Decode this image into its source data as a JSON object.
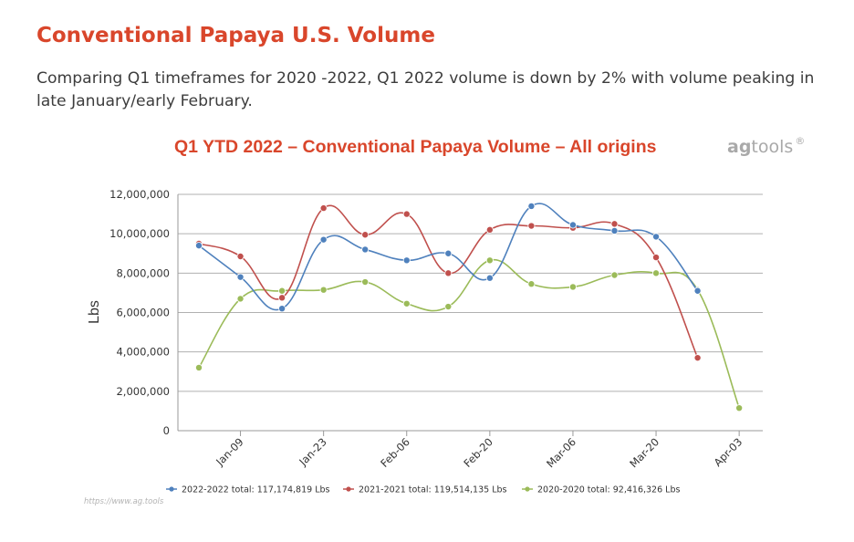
{
  "page": {
    "title": "Conventional Papaya U.S. Volume",
    "subtitle": "Comparing Q1 timeframes for 2020 -2022, Q1 2022 volume is down by 2% with volume peaking in late January/early February."
  },
  "brand": {
    "prefix": "ag",
    "name": "tools",
    "mark": "®"
  },
  "source_url": "https://www.ag.tools",
  "colors": {
    "title": "#d9462b",
    "s2022": "#4f81bd",
    "s2021": "#c0504d",
    "s2020": "#9bbb59",
    "grid": "#b0b0b0"
  },
  "chart_data": {
    "type": "line",
    "title": "Q1 YTD 2022 – Conventional Papaya Volume – All origins",
    "ylabel": "Lbs",
    "xlabel": "",
    "ylim": [
      0,
      12000000
    ],
    "yticks": [
      "0",
      "2,000,000",
      "4,000,000",
      "6,000,000",
      "8,000,000",
      "10,000,000",
      "12,000,000"
    ],
    "xtick_labels": [
      "Jan-09",
      "Jan-23",
      "Feb-06",
      "Feb-20",
      "Mar-06",
      "Mar-20",
      "Apr-03"
    ],
    "x": [
      "Jan-02",
      "Jan-09",
      "Jan-16",
      "Jan-23",
      "Jan-30",
      "Feb-06",
      "Feb-13",
      "Feb-20",
      "Feb-27",
      "Mar-06",
      "Mar-13",
      "Mar-20",
      "Mar-27",
      "Apr-03"
    ],
    "grid": true,
    "legend_position": "bottom",
    "series": [
      {
        "name": "2022-2022",
        "legend": "2022-2022 total: 117,174,819 Lbs",
        "values": [
          9400000,
          7800000,
          6200000,
          9700000,
          9200000,
          8650000,
          9000000,
          7750000,
          11400000,
          10450000,
          10150000,
          9850000,
          7100000,
          null
        ]
      },
      {
        "name": "2021-2021",
        "legend": "2021-2021 total: 119,514,135 Lbs",
        "values": [
          9500000,
          8850000,
          6750000,
          11300000,
          9950000,
          11000000,
          8000000,
          10200000,
          10400000,
          10300000,
          10500000,
          8800000,
          3700000,
          null
        ]
      },
      {
        "name": "2020-2020",
        "legend": "2020-2020 total: 92,416,326 Lbs",
        "values": [
          3200000,
          6700000,
          7100000,
          7150000,
          7550000,
          6450000,
          6300000,
          8650000,
          7450000,
          7300000,
          7900000,
          8000000,
          7150000,
          1150000
        ]
      }
    ]
  }
}
